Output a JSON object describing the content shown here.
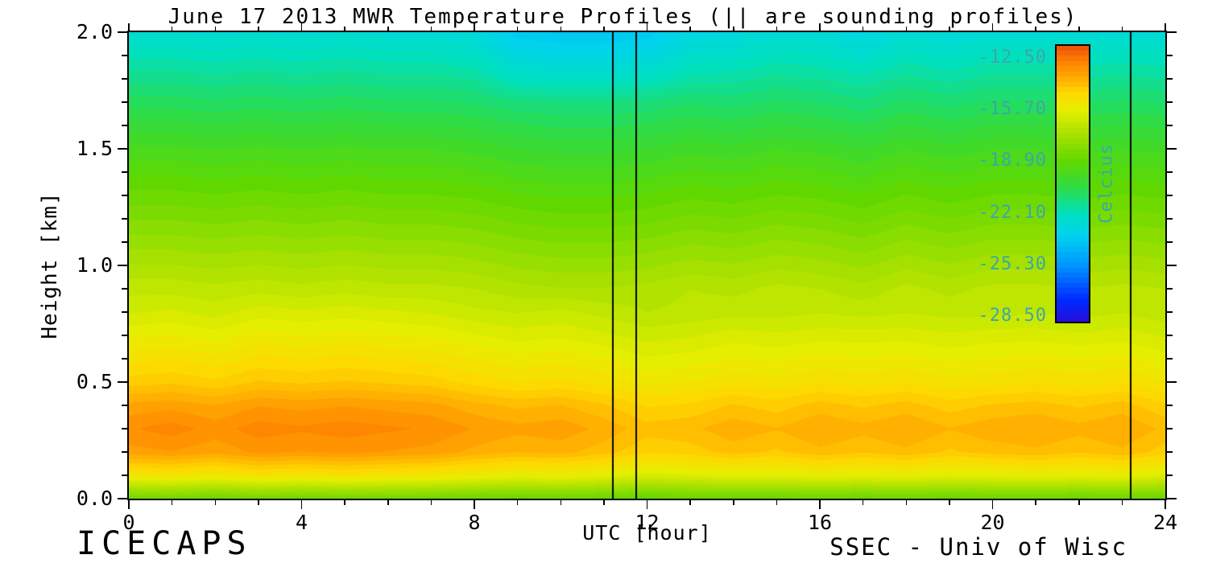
{
  "chart_data": {
    "type": "heatmap",
    "title": "June 17 2013 MWR Temperature Profiles (|| are sounding profiles)",
    "xlabel": "UTC [hour]",
    "ylabel": "Height [km]",
    "x_range": [
      0,
      24
    ],
    "y_range": [
      0.0,
      2.0
    ],
    "x_hours": [
      0,
      1,
      2,
      3,
      4,
      5,
      6,
      7,
      8,
      9,
      10,
      11,
      12,
      13,
      14,
      15,
      16,
      17,
      18,
      19,
      20,
      21,
      22,
      23,
      24
    ],
    "y_heights_km": [
      0.0,
      0.1,
      0.2,
      0.3,
      0.4,
      0.5,
      0.6,
      0.7,
      0.8,
      0.9,
      1.0,
      1.1,
      1.2,
      1.3,
      1.4,
      1.5,
      1.6,
      1.7,
      1.8,
      1.9,
      2.0
    ],
    "temperature_c": [
      [
        -18.6,
        -18.5,
        -18.7,
        -18.5,
        -18.6,
        -18.5,
        -18.6,
        -18.6,
        -18.7,
        -18.8,
        -18.7,
        -18.8,
        -18.9,
        -18.8,
        -18.8,
        -18.8,
        -18.7,
        -18.8,
        -18.7,
        -18.8,
        -18.7,
        -18.7,
        -18.8,
        -18.7,
        -18.8
      ],
      [
        -15.2,
        -15.1,
        -15.3,
        -15.0,
        -15.1,
        -15.0,
        -15.1,
        -15.2,
        -15.4,
        -15.6,
        -15.5,
        -15.7,
        -16.0,
        -15.9,
        -15.7,
        -15.8,
        -15.6,
        -15.7,
        -15.6,
        -15.8,
        -15.7,
        -15.6,
        -15.7,
        -15.6,
        -15.9
      ],
      [
        -13.4,
        -13.3,
        -13.5,
        -13.2,
        -13.3,
        -13.2,
        -13.3,
        -13.4,
        -13.7,
        -13.9,
        -13.8,
        -14.1,
        -14.5,
        -14.4,
        -14.1,
        -14.3,
        -14.0,
        -14.2,
        -14.0,
        -14.3,
        -14.1,
        -14.0,
        -14.2,
        -14.0,
        -14.4
      ],
      [
        -13.0,
        -12.8,
        -13.1,
        -12.8,
        -12.9,
        -12.8,
        -12.9,
        -13.0,
        -13.3,
        -13.5,
        -13.4,
        -13.7,
        -14.1,
        -14.0,
        -13.7,
        -13.9,
        -13.6,
        -13.8,
        -13.6,
        -13.9,
        -13.7,
        -13.6,
        -13.8,
        -13.6,
        -14.0
      ],
      [
        -13.5,
        -13.4,
        -13.6,
        -13.3,
        -13.4,
        -13.3,
        -13.4,
        -13.5,
        -13.8,
        -14.0,
        -13.9,
        -14.2,
        -14.6,
        -14.5,
        -14.2,
        -14.4,
        -14.1,
        -14.3,
        -14.1,
        -14.4,
        -14.2,
        -14.1,
        -14.3,
        -14.1,
        -14.5
      ],
      [
        -14.4,
        -14.3,
        -14.5,
        -14.2,
        -14.3,
        -14.2,
        -14.3,
        -14.4,
        -14.7,
        -14.9,
        -14.8,
        -15.0,
        -15.3,
        -15.2,
        -15.0,
        -15.1,
        -14.9,
        -15.0,
        -14.9,
        -15.1,
        -15.0,
        -14.9,
        -15.0,
        -14.9,
        -15.2
      ],
      [
        -15.0,
        -14.9,
        -15.1,
        -14.8,
        -14.9,
        -14.8,
        -14.9,
        -15.0,
        -15.2,
        -15.4,
        -15.3,
        -15.5,
        -15.8,
        -15.7,
        -15.5,
        -15.6,
        -15.4,
        -15.5,
        -15.4,
        -15.6,
        -15.5,
        -15.4,
        -15.5,
        -15.4,
        -15.7
      ],
      [
        -15.6,
        -15.5,
        -15.7,
        -15.4,
        -15.5,
        -15.4,
        -15.5,
        -15.6,
        -15.8,
        -16.0,
        -15.9,
        -16.1,
        -16.3,
        -16.2,
        -16.0,
        -16.1,
        -16.0,
        -16.0,
        -16.0,
        -16.1,
        -16.0,
        -16.0,
        -16.1,
        -16.0,
        -16.2
      ],
      [
        -16.2,
        -16.1,
        -16.3,
        -16.0,
        -16.1,
        -16.0,
        -16.1,
        -16.2,
        -16.4,
        -16.5,
        -16.4,
        -16.6,
        -16.8,
        -16.7,
        -16.6,
        -16.6,
        -16.5,
        -16.6,
        -16.5,
        -16.6,
        -16.6,
        -16.5,
        -16.6,
        -16.5,
        -16.7
      ],
      [
        -16.6,
        -16.6,
        -16.7,
        -16.6,
        -16.7,
        -16.6,
        -16.7,
        -16.7,
        -16.8,
        -17.0,
        -17.1,
        -17.1,
        -17.0,
        -16.8,
        -16.9,
        -16.7,
        -16.8,
        -17.0,
        -16.7,
        -16.9,
        -16.7,
        -16.7,
        -16.8,
        -16.7,
        -16.8
      ],
      [
        -17.1,
        -17.1,
        -17.2,
        -17.1,
        -17.2,
        -17.1,
        -17.2,
        -17.2,
        -17.3,
        -17.5,
        -17.6,
        -17.6,
        -17.5,
        -17.3,
        -17.4,
        -17.2,
        -17.3,
        -17.5,
        -17.2,
        -17.4,
        -17.2,
        -17.2,
        -17.3,
        -17.2,
        -17.3
      ],
      [
        -17.6,
        -17.6,
        -17.7,
        -17.6,
        -17.7,
        -17.6,
        -17.7,
        -17.7,
        -17.8,
        -18.0,
        -18.1,
        -18.1,
        -18.0,
        -17.8,
        -17.9,
        -17.7,
        -17.8,
        -18.0,
        -17.7,
        -17.9,
        -17.7,
        -17.7,
        -17.8,
        -17.7,
        -17.8
      ],
      [
        -18.1,
        -18.1,
        -18.2,
        -18.1,
        -18.2,
        -18.1,
        -18.2,
        -18.2,
        -18.3,
        -18.5,
        -18.6,
        -18.6,
        -18.5,
        -18.3,
        -18.4,
        -18.2,
        -18.3,
        -18.5,
        -18.2,
        -18.4,
        -18.2,
        -18.2,
        -18.3,
        -18.2,
        -18.3
      ],
      [
        -18.6,
        -18.6,
        -18.7,
        -18.6,
        -18.7,
        -18.6,
        -18.7,
        -18.7,
        -18.8,
        -19.0,
        -19.1,
        -19.1,
        -19.0,
        -18.8,
        -18.9,
        -18.7,
        -18.8,
        -19.0,
        -18.7,
        -18.9,
        -18.7,
        -18.7,
        -18.8,
        -18.7,
        -18.8
      ],
      [
        -19.1,
        -19.1,
        -19.2,
        -19.1,
        -19.2,
        -19.1,
        -19.2,
        -19.2,
        -19.3,
        -19.5,
        -19.6,
        -19.6,
        -19.5,
        -19.3,
        -19.4,
        -19.2,
        -19.3,
        -19.5,
        -19.2,
        -19.4,
        -19.2,
        -19.2,
        -19.3,
        -19.2,
        -19.3
      ],
      [
        -19.6,
        -19.6,
        -19.7,
        -19.6,
        -19.7,
        -19.6,
        -19.7,
        -19.7,
        -19.8,
        -20.0,
        -20.1,
        -20.1,
        -20.0,
        -19.8,
        -19.9,
        -19.7,
        -19.8,
        -20.0,
        -19.7,
        -19.9,
        -19.7,
        -19.7,
        -19.8,
        -19.7,
        -19.8
      ],
      [
        -20.2,
        -20.2,
        -20.3,
        -20.2,
        -20.3,
        -20.2,
        -20.3,
        -20.3,
        -20.4,
        -20.6,
        -20.7,
        -20.7,
        -20.6,
        -20.4,
        -20.5,
        -20.3,
        -20.4,
        -20.6,
        -20.3,
        -20.5,
        -20.3,
        -20.3,
        -20.4,
        -20.3,
        -20.4
      ],
      [
        -20.8,
        -20.8,
        -20.9,
        -20.8,
        -20.9,
        -20.8,
        -20.9,
        -20.9,
        -21.0,
        -21.2,
        -21.3,
        -21.3,
        -21.2,
        -21.0,
        -21.1,
        -20.9,
        -21.0,
        -21.2,
        -20.9,
        -21.1,
        -20.9,
        -20.9,
        -21.0,
        -20.9,
        -21.0
      ],
      [
        -21.4,
        -21.4,
        -21.5,
        -21.4,
        -21.5,
        -21.4,
        -21.5,
        -21.5,
        -21.6,
        -22.2,
        -22.3,
        -22.3,
        -22.2,
        -21.8,
        -21.7,
        -21.5,
        -21.6,
        -21.8,
        -21.5,
        -21.7,
        -21.5,
        -21.5,
        -21.6,
        -21.5,
        -21.6
      ],
      [
        -22.0,
        -22.0,
        -22.1,
        -22.0,
        -22.1,
        -22.0,
        -22.1,
        -22.1,
        -22.3,
        -23.0,
        -23.1,
        -23.1,
        -23.0,
        -22.5,
        -22.4,
        -22.1,
        -22.2,
        -22.5,
        -22.1,
        -22.3,
        -22.1,
        -22.1,
        -22.2,
        -22.1,
        -22.2
      ],
      [
        -22.6,
        -22.6,
        -22.7,
        -22.6,
        -22.7,
        -22.6,
        -22.7,
        -22.7,
        -22.9,
        -23.7,
        -23.9,
        -23.9,
        -23.7,
        -23.1,
        -23.0,
        -22.7,
        -22.8,
        -23.1,
        -22.7,
        -22.9,
        -22.7,
        -22.7,
        -22.8,
        -22.7,
        -22.8
      ]
    ],
    "sounding_profile_hours": [
      11.2,
      11.75,
      23.2
    ],
    "x_ticks": {
      "major": [
        0,
        4,
        8,
        12,
        16,
        20,
        24
      ],
      "labels": [
        "0",
        "4",
        "8",
        "12",
        "16",
        "20",
        "24"
      ],
      "minor_step": 1
    },
    "y_ticks": {
      "major": [
        0.0,
        0.5,
        1.0,
        1.5,
        2.0
      ],
      "labels": [
        "0.0",
        "0.5",
        "1.0",
        "1.5",
        "2.0"
      ],
      "minor_step": 0.1
    },
    "colorbar": {
      "label": "Celcius",
      "tick_values": [
        -12.5,
        -15.7,
        -18.9,
        -22.1,
        -25.3,
        -28.5
      ],
      "tick_labels": [
        "-12.50",
        "-15.70",
        "-18.90",
        "-22.10",
        "-25.30",
        "-28.50"
      ],
      "range_top_c": -11.7,
      "range_bottom_c": -28.8,
      "text_color": "#3aa8a8"
    },
    "colormap_stops": [
      [
        -29.5,
        "#3c00c8"
      ],
      [
        -27.5,
        "#0028ff"
      ],
      [
        -25.3,
        "#0096ff"
      ],
      [
        -23.5,
        "#00d2f0"
      ],
      [
        -22.1,
        "#00e0be"
      ],
      [
        -20.5,
        "#2edc46"
      ],
      [
        -18.9,
        "#5fd800"
      ],
      [
        -17.3,
        "#a4e000"
      ],
      [
        -15.7,
        "#e6ee00"
      ],
      [
        -14.6,
        "#ffd800"
      ],
      [
        -13.6,
        "#ffa800"
      ],
      [
        -12.7,
        "#ff8200"
      ],
      [
        -11.7,
        "#eb5009"
      ]
    ],
    "contour_band_step_c": 0.32
  },
  "footer": {
    "left": "ICECAPS",
    "right": "SSEC - Univ of Wisc"
  }
}
